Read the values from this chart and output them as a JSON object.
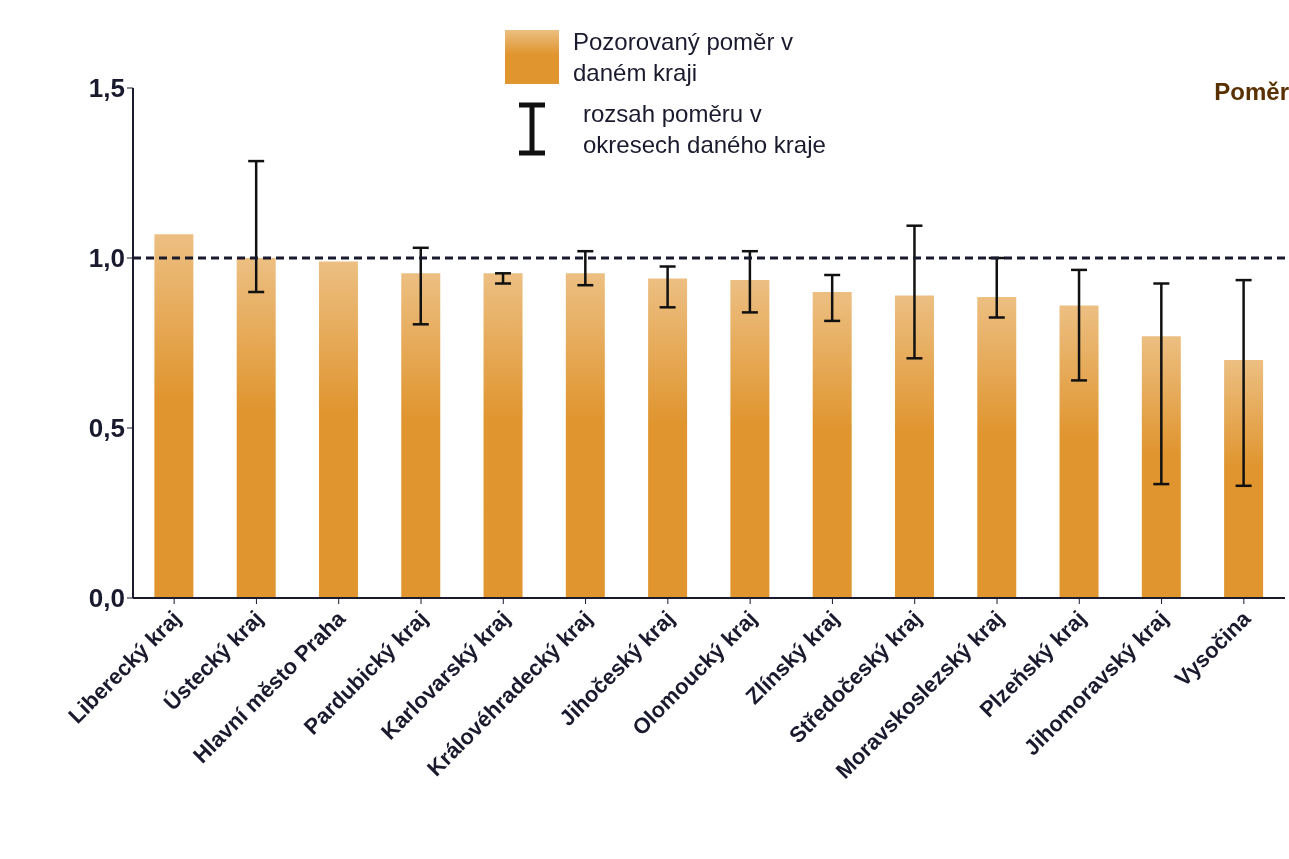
{
  "chart_data": {
    "type": "bar",
    "ylabel": "Poměr",
    "categories": [
      "Liberecký kraj",
      "Ústecký kraj",
      "Hlavní město Praha",
      "Pardubický kraj",
      "Karlovarský kraj",
      "Královéhradecký kraj",
      "Jihočeský kraj",
      "Olomoucký kraj",
      "Zlínský kraj",
      "Středočeský kraj",
      "Moravskoslezský kraj",
      "Plzeňský kraj",
      "Jihomoravský kraj",
      "Vysočina"
    ],
    "series": [
      {
        "name": "Pozorovaný poměr v daném kraji",
        "color": "#e0952f",
        "values": [
          1.07,
          1.0,
          0.99,
          0.955,
          0.955,
          0.955,
          0.94,
          0.935,
          0.9,
          0.89,
          0.885,
          0.86,
          0.77,
          0.7
        ],
        "errors": [
          null,
          [
            0.9,
            1.285
          ],
          null,
          [
            0.805,
            1.03
          ],
          [
            0.925,
            0.955
          ],
          [
            0.92,
            1.02
          ],
          [
            0.855,
            0.975
          ],
          [
            0.84,
            1.02
          ],
          [
            0.815,
            0.95
          ],
          [
            0.705,
            1.095
          ],
          [
            0.825,
            1.0
          ],
          [
            0.64,
            0.965
          ],
          [
            0.335,
            0.925
          ],
          [
            0.33,
            0.935
          ]
        ]
      }
    ],
    "ylim": [
      0,
      1.5
    ],
    "yticks": [
      {
        "value": 0,
        "label": "0,0"
      },
      {
        "value": 0.5,
        "label": "0,5"
      },
      {
        "value": 1,
        "label": "1,0"
      },
      {
        "value": 1.5,
        "label": "1,5"
      }
    ],
    "grid": false,
    "legend": "top",
    "ref_lines": [
      {
        "axis": "y",
        "value": 1,
        "line_style": "dashed",
        "color": "#1a1a2e"
      }
    ],
    "annotations": [
      "rozsah poměru v okresech daného kraje"
    ]
  }
}
